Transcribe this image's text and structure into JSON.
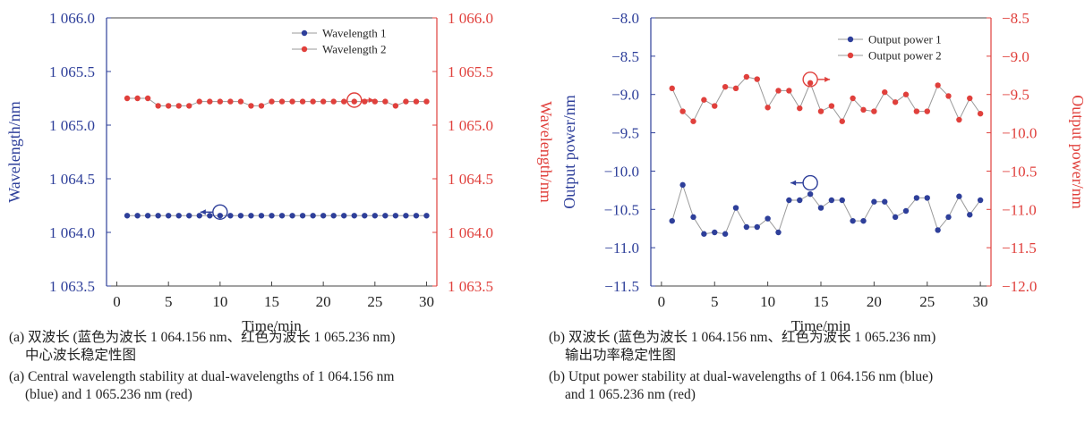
{
  "colors": {
    "blue": "#2e3f9a",
    "red": "#e0403c",
    "line": "#9a9a9a",
    "frame": "#444444"
  },
  "chart_data": [
    {
      "type": "line",
      "xlabel": "Time/min",
      "ylabel_left": "Wavelength/nm",
      "ylabel_right": "Wavelength/nm",
      "xlim": [
        -1,
        31
      ],
      "xticks": [
        0,
        5,
        10,
        15,
        20,
        25,
        30
      ],
      "xtick_labels": [
        "0",
        "5",
        "10",
        "15",
        "20",
        "25",
        "30"
      ],
      "ylim_left": [
        1063.5,
        1066.0
      ],
      "ylim_right": [
        1063.5,
        1066.0
      ],
      "yticks_left": [
        1063.5,
        1064.0,
        1064.5,
        1065.0,
        1065.5,
        1066.0
      ],
      "ytick_labels_left": [
        "1 063.5",
        "1 064.0",
        "1 064.5",
        "1 065.0",
        "1 065.5",
        "1 066.0"
      ],
      "yticks_right": [
        1063.5,
        1064.0,
        1064.5,
        1065.0,
        1065.5,
        1066.0
      ],
      "ytick_labels_right": [
        "1 063.5",
        "1 064.0",
        "1 064.5",
        "1 065.0",
        "1 065.5",
        "1 066.0"
      ],
      "legend": "top-right",
      "grid": false,
      "x": [
        1,
        2,
        3,
        4,
        5,
        6,
        7,
        8,
        9,
        10,
        11,
        12,
        13,
        14,
        15,
        16,
        17,
        18,
        19,
        20,
        21,
        22,
        23,
        24,
        25,
        26,
        27,
        28,
        29,
        30
      ],
      "series": [
        {
          "name": "Wavelength 1",
          "axis": "left",
          "color": "blue",
          "values": [
            1064.156,
            1064.156,
            1064.156,
            1064.156,
            1064.156,
            1064.156,
            1064.156,
            1064.156,
            1064.156,
            1064.156,
            1064.156,
            1064.156,
            1064.156,
            1064.156,
            1064.156,
            1064.156,
            1064.156,
            1064.156,
            1064.156,
            1064.156,
            1064.156,
            1064.156,
            1064.156,
            1064.156,
            1064.156,
            1064.156,
            1064.156,
            1064.156,
            1064.156,
            1064.156
          ]
        },
        {
          "name": "Wavelength 2",
          "axis": "right",
          "color": "red",
          "values": [
            1065.25,
            1065.25,
            1065.25,
            1065.18,
            1065.18,
            1065.18,
            1065.18,
            1065.22,
            1065.22,
            1065.22,
            1065.22,
            1065.22,
            1065.18,
            1065.18,
            1065.22,
            1065.22,
            1065.22,
            1065.22,
            1065.22,
            1065.22,
            1065.22,
            1065.22,
            1065.22,
            1065.22,
            1065.22,
            1065.22,
            1065.18,
            1065.22,
            1065.22,
            1065.22
          ]
        }
      ],
      "markers": [
        {
          "x": 10,
          "y": 1064.156,
          "axis": "left",
          "dir": "left",
          "color": "blue"
        },
        {
          "x": 23,
          "y": 1065.2,
          "axis": "right",
          "dir": "right",
          "color": "red"
        }
      ]
    },
    {
      "type": "line",
      "xlabel": "Time/min",
      "ylabel_left": "Output power/nm",
      "ylabel_right": "Output power/nm",
      "xlim": [
        -1,
        31
      ],
      "xticks": [
        0,
        5,
        10,
        15,
        20,
        25,
        30
      ],
      "xtick_labels": [
        "0",
        "5",
        "10",
        "15",
        "20",
        "25",
        "30"
      ],
      "ylim_left": [
        -11.5,
        -8.0
      ],
      "ylim_right": [
        -12.0,
        -8.5
      ],
      "yticks_left": [
        -11.5,
        -11.0,
        -10.5,
        -10.0,
        -9.5,
        -9.0,
        -8.5,
        -8.0
      ],
      "ytick_labels_left": [
        "−11.5",
        "−11.0",
        "−10.5",
        "−10.0",
        "−9.5",
        "−9.0",
        "−8.5",
        "−8.0"
      ],
      "yticks_right": [
        -12.0,
        -11.5,
        -11.0,
        -10.5,
        -10.0,
        -9.5,
        -9.0,
        -8.5
      ],
      "ytick_labels_right": [
        "−12.0",
        "−11.5",
        "−11.0",
        "−10.5",
        "−10.0",
        "−9.5",
        "−9.0",
        "−8.5"
      ],
      "legend": "top-right",
      "grid": false,
      "x": [
        1,
        2,
        3,
        4,
        5,
        6,
        7,
        8,
        9,
        10,
        11,
        12,
        13,
        14,
        15,
        16,
        17,
        18,
        19,
        20,
        21,
        22,
        23,
        24,
        25,
        26,
        27,
        28,
        29,
        30
      ],
      "series": [
        {
          "name": "Output power 1",
          "axis": "left",
          "color": "blue",
          "values": [
            -10.65,
            -10.18,
            -10.6,
            -10.82,
            -10.8,
            -10.82,
            -10.48,
            -10.73,
            -10.73,
            -10.62,
            -10.8,
            -10.38,
            -10.38,
            -10.3,
            -10.48,
            -10.38,
            -10.38,
            -10.65,
            -10.65,
            -10.4,
            -10.4,
            -10.6,
            -10.52,
            -10.35,
            -10.35,
            -10.77,
            -10.6,
            -10.33,
            -10.57,
            -10.38
          ]
        },
        {
          "name": "Output power 2",
          "axis": "right",
          "color": "red",
          "values": [
            -9.42,
            -9.72,
            -9.85,
            -9.57,
            -9.65,
            -9.4,
            -9.42,
            -9.27,
            -9.3,
            -9.67,
            -9.45,
            -9.45,
            -9.68,
            -9.35,
            -9.72,
            -9.65,
            -9.85,
            -9.55,
            -9.7,
            -9.72,
            -9.47,
            -9.6,
            -9.5,
            -9.72,
            -9.72,
            -9.38,
            -9.52,
            -9.83,
            -9.55,
            -9.75
          ]
        }
      ],
      "markers": [
        {
          "x": 14,
          "y": -10.2,
          "axis": "left",
          "dir": "left",
          "color": "blue"
        },
        {
          "x": 14,
          "y": -9.35,
          "axis": "right",
          "dir": "right",
          "color": "red"
        }
      ]
    }
  ],
  "captions": {
    "a_cn_1": "(a) 双波长 (蓝色为波长 1 064.156 nm、红色为波长 1 065.236 nm)",
    "a_cn_2": "中心波长稳定性图",
    "a_en_1": "(a) Central wavelength stability at dual-wavelengths of 1 064.156 nm",
    "a_en_2": "(blue) and 1 065.236 nm (red)",
    "b_cn_1": "(b) 双波长 (蓝色为波长 1 064.156 nm、红色为波长 1 065.236 nm)",
    "b_cn_2": "输出功率稳定性图",
    "b_en_1": "(b) Utput power stability at dual-wavelengths of 1 064.156 nm (blue)",
    "b_en_2": "and 1 065.236 nm (red)"
  }
}
